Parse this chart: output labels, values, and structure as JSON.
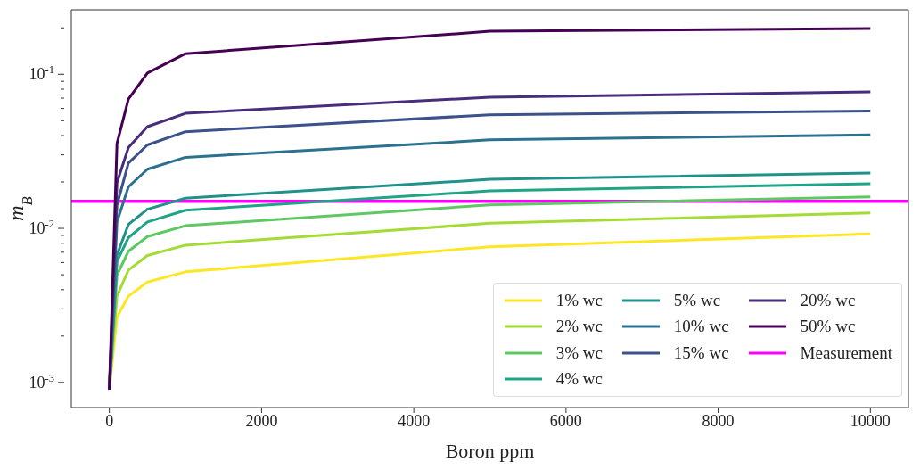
{
  "chart_data": {
    "type": "line",
    "xlabel": "Boron ppm",
    "ylabel": "m$_{B}$",
    "log": "y",
    "grid": false,
    "legend": "bottom right",
    "marker": "none",
    "line_style": "solid",
    "xlim": [
      -500,
      10500
    ],
    "xticks": [
      0,
      2000,
      4000,
      6000,
      8000,
      10000
    ],
    "ylim": [
      0.000687,
      0.262
    ],
    "yticks": [
      {
        "value": 0.001,
        "label": "10$^{-3}$"
      },
      {
        "value": 0.002,
        "label": null
      },
      {
        "value": 0.003,
        "label": null
      },
      {
        "value": 0.004,
        "label": null
      },
      {
        "value": 0.005,
        "label": null
      },
      {
        "value": 0.006,
        "label": null
      },
      {
        "value": 0.007,
        "label": null
      },
      {
        "value": 0.008,
        "label": null
      },
      {
        "value": 0.009,
        "label": null
      },
      {
        "value": 0.01,
        "label": "10$^{-2}$"
      },
      {
        "value": 0.02,
        "label": null
      },
      {
        "value": 0.03,
        "label": null
      },
      {
        "value": 0.04,
        "label": null
      },
      {
        "value": 0.05,
        "label": null
      },
      {
        "value": 0.06,
        "label": null
      },
      {
        "value": 0.07,
        "label": null
      },
      {
        "value": 0.08,
        "label": null
      },
      {
        "value": 0.09,
        "label": null
      },
      {
        "value": 0.1,
        "label": "10$^{-1}$"
      },
      {
        "value": 0.2,
        "label": null
      }
    ],
    "x": [
      0,
      100,
      250,
      500,
      1000,
      5000,
      10000
    ],
    "series": [
      {
        "name": "1% wc",
        "color": "#fde725",
        "values": [
          0.0009,
          0.00265,
          0.00363,
          0.00448,
          0.00522,
          0.0076,
          0.0092
        ]
      },
      {
        "name": "2% wc",
        "color": "#a5db36",
        "values": [
          0.0009,
          0.00363,
          0.00536,
          0.00667,
          0.00778,
          0.0108,
          0.0126
        ]
      },
      {
        "name": "3% wc",
        "color": "#5ec962",
        "values": [
          0.0009,
          0.00497,
          0.0071,
          0.00885,
          0.0104,
          0.0142,
          0.016
        ]
      },
      {
        "name": "4% wc",
        "color": "#20a486",
        "values": [
          0.0009,
          0.0061,
          0.0087,
          0.011,
          0.0131,
          0.0175,
          0.0195
        ]
      },
      {
        "name": "5% wc",
        "color": "#21918c",
        "values": [
          0.0009,
          0.0067,
          0.0106,
          0.0133,
          0.0157,
          0.0208,
          0.0229
        ]
      },
      {
        "name": "10% wc",
        "color": "#2c728e",
        "values": [
          0.0009,
          0.011,
          0.0186,
          0.0242,
          0.0289,
          0.0375,
          0.0404
        ]
      },
      {
        "name": "15% wc",
        "color": "#3b528b",
        "values": [
          0.0009,
          0.0142,
          0.0265,
          0.0348,
          0.0424,
          0.0546,
          0.0578
        ]
      },
      {
        "name": "20% wc",
        "color": "#472d7b",
        "values": [
          0.0009,
          0.0198,
          0.0334,
          0.0457,
          0.0558,
          0.071,
          0.0769
        ]
      },
      {
        "name": "50% wc",
        "color": "#440154",
        "values": [
          0.0009,
          0.0356,
          0.069,
          0.102,
          0.136,
          0.19,
          0.198
        ]
      }
    ],
    "ref_lines": [
      {
        "axis": "y",
        "value": 0.015,
        "label": "Measurement",
        "color": "#ff00ff",
        "line_style": "solid"
      }
    ]
  }
}
